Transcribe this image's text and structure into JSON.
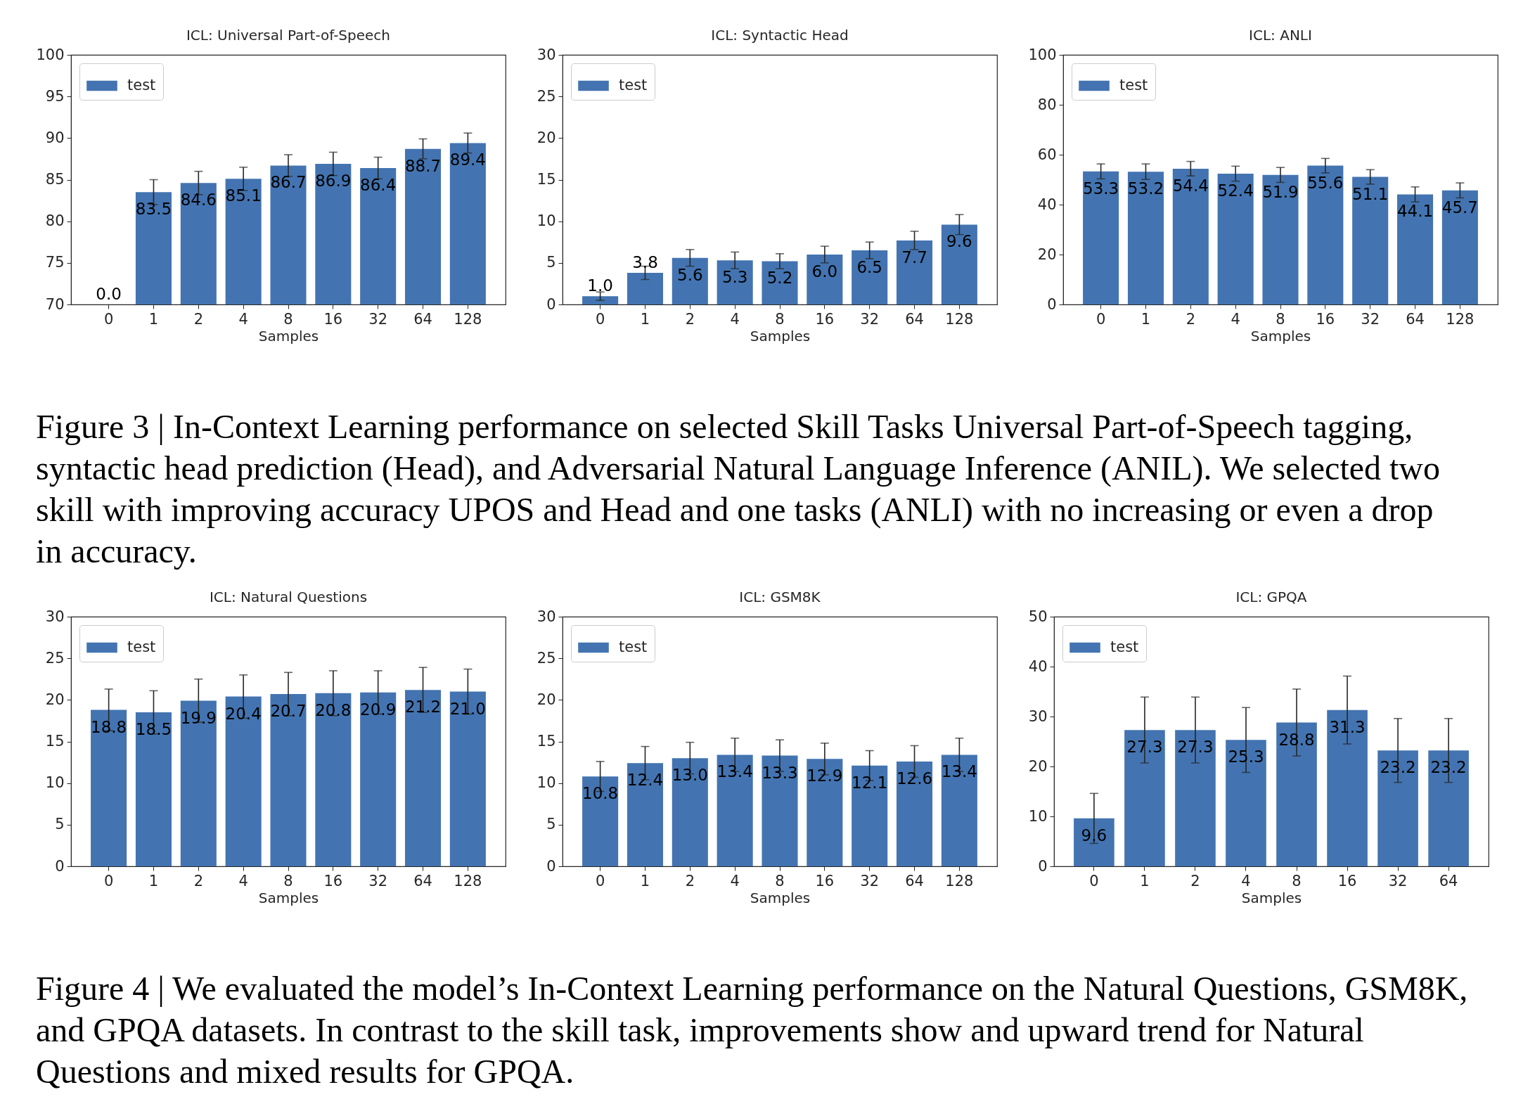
{
  "chart_data": [
    {
      "type": "bar",
      "title": "ICL: Universal Part-of-Speech",
      "xlabel": "Samples",
      "categories": [
        "0",
        "1",
        "2",
        "4",
        "8",
        "16",
        "32",
        "64",
        "128"
      ],
      "series": [
        {
          "name": "test",
          "color": "#4374b1",
          "values": [
            null,
            83.5,
            84.6,
            85.1,
            86.7,
            86.9,
            86.4,
            88.7,
            89.4
          ],
          "errors": [
            null,
            1.5,
            1.4,
            1.4,
            1.3,
            1.4,
            1.3,
            1.2,
            1.2
          ],
          "value_labels": [
            null,
            "83.5",
            "84.6",
            "85.1",
            "86.7",
            "86.9",
            "86.4",
            "88.7",
            "89.4"
          ]
        }
      ],
      "ylim": [
        70,
        100
      ],
      "yticks": [
        70,
        75,
        80,
        85,
        90,
        95,
        100
      ],
      "legend": "top left",
      "annotations": [
        "0.0"
      ]
    },
    {
      "type": "bar",
      "title": "ICL: Syntactic Head",
      "xlabel": "Samples",
      "categories": [
        "0",
        "1",
        "2",
        "4",
        "8",
        "16",
        "32",
        "64",
        "128"
      ],
      "series": [
        {
          "name": "test",
          "color": "#4374b1",
          "values": [
            1.0,
            3.8,
            5.6,
            5.3,
            5.2,
            6.0,
            6.5,
            7.7,
            9.6
          ],
          "errors": [
            0.5,
            0.8,
            1.0,
            1.0,
            0.9,
            1.0,
            1.0,
            1.1,
            1.2
          ],
          "value_labels": [
            "1.0",
            "3.8",
            "5.6",
            "5.3",
            "5.2",
            "6.0",
            "6.5",
            "7.7",
            "9.6"
          ]
        }
      ],
      "ylim": [
        0,
        30
      ],
      "yticks": [
        0,
        5,
        10,
        15,
        20,
        25,
        30
      ],
      "legend": "top left"
    },
    {
      "type": "bar",
      "title": "ICL: ANLI",
      "xlabel": "Samples",
      "categories": [
        "0",
        "1",
        "2",
        "4",
        "8",
        "16",
        "32",
        "64",
        "128"
      ],
      "series": [
        {
          "name": "test",
          "color": "#4374b1",
          "values": [
            53.3,
            53.2,
            54.4,
            52.4,
            51.9,
            55.6,
            51.1,
            44.1,
            45.7
          ],
          "errors": [
            3.0,
            3.1,
            2.9,
            3.0,
            3.0,
            2.9,
            2.9,
            3.0,
            3.0
          ],
          "value_labels": [
            "53.3",
            "53.2",
            "54.4",
            "52.4",
            "51.9",
            "55.6",
            "51.1",
            "44.1",
            "45.7"
          ]
        }
      ],
      "ylim": [
        0,
        100
      ],
      "yticks": [
        0,
        20,
        40,
        60,
        80,
        100
      ],
      "legend": "top left"
    },
    {
      "type": "other",
      "annotations": [
        "Figure 3 | In-Context Learning performance on selected Skill Tasks Universal Part-of-Speech tagging, syntactic head prediction (Head), and Adversarial Natural Language Inference (ANIL). We selected two skill with improving accuracy UPOS and Head and one tasks (ANLI) with no increasing or even a drop in accuracy."
      ]
    },
    {
      "type": "bar",
      "title": "ICL: Natural Questions",
      "xlabel": "Samples",
      "categories": [
        "0",
        "1",
        "2",
        "4",
        "8",
        "16",
        "32",
        "64",
        "128"
      ],
      "series": [
        {
          "name": "test",
          "color": "#4374b1",
          "values": [
            18.8,
            18.5,
            19.9,
            20.4,
            20.7,
            20.8,
            20.9,
            21.2,
            21.0
          ],
          "errors": [
            2.5,
            2.6,
            2.6,
            2.6,
            2.6,
            2.7,
            2.6,
            2.7,
            2.7
          ],
          "value_labels": [
            "18.8",
            "18.5",
            "19.9",
            "20.4",
            "20.7",
            "20.8",
            "20.9",
            "21.2",
            "21.0"
          ]
        }
      ],
      "ylim": [
        0,
        30
      ],
      "yticks": [
        0,
        5,
        10,
        15,
        20,
        25,
        30
      ],
      "legend": "top left"
    },
    {
      "type": "bar",
      "title": "ICL: GSM8K",
      "xlabel": "Samples",
      "categories": [
        "0",
        "1",
        "2",
        "4",
        "8",
        "16",
        "32",
        "64",
        "128"
      ],
      "series": [
        {
          "name": "test",
          "color": "#4374b1",
          "values": [
            10.8,
            12.4,
            13.0,
            13.4,
            13.3,
            12.9,
            12.1,
            12.6,
            13.4
          ],
          "errors": [
            1.8,
            2.0,
            1.9,
            2.0,
            1.9,
            1.9,
            1.8,
            1.9,
            2.0
          ],
          "value_labels": [
            "10.8",
            "12.4",
            "13.0",
            "13.4",
            "13.3",
            "12.9",
            "12.1",
            "12.6",
            "13.4"
          ]
        }
      ],
      "ylim": [
        0,
        30
      ],
      "yticks": [
        0,
        5,
        10,
        15,
        20,
        25,
        30
      ],
      "legend": "top left"
    },
    {
      "type": "bar",
      "title": "ICL: GPQA",
      "xlabel": "Samples",
      "categories": [
        "0",
        "1",
        "2",
        "4",
        "8",
        "16",
        "32",
        "64"
      ],
      "series": [
        {
          "name": "test",
          "color": "#4374b1",
          "values": [
            9.6,
            27.3,
            27.3,
            25.3,
            28.8,
            31.3,
            23.2,
            23.2
          ],
          "errors": [
            5.0,
            6.6,
            6.6,
            6.5,
            6.7,
            6.8,
            6.4,
            6.4
          ],
          "value_labels": [
            "9.6",
            "27.3",
            "27.3",
            "25.3",
            "28.8",
            "31.3",
            "23.2",
            "23.2"
          ]
        }
      ],
      "ylim": [
        0,
        50
      ],
      "yticks": [
        0,
        10,
        20,
        30,
        40,
        50
      ],
      "legend": "top left"
    },
    {
      "type": "other",
      "annotations": [
        "Figure 4 | We evaluated the model’s In-Context Learning performance on the Natural Questions, GSM8K, and GPQA datasets. In contrast to the skill task, improvements show and upward trend for Natural Questions and mixed results for GPQA."
      ]
    }
  ]
}
